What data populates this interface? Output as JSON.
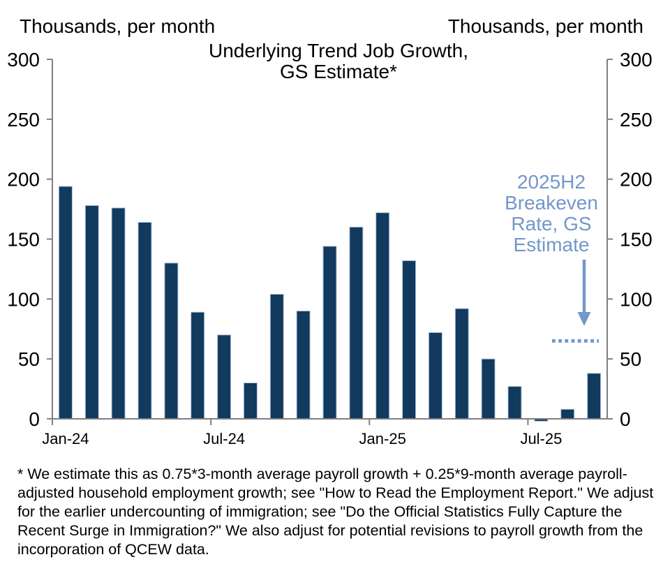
{
  "header": {
    "left_axis_units": "Thousands, per month",
    "right_axis_units": "Thousands, per month"
  },
  "title": "Underlying Trend Job Growth,\nGS Estimate*",
  "chart_data": {
    "type": "bar",
    "categories": [
      "Jan-24",
      "Feb-24",
      "Mar-24",
      "Apr-24",
      "May-24",
      "Jun-24",
      "Jul-24",
      "Aug-24",
      "Sep-24",
      "Oct-24",
      "Nov-24",
      "Dec-24",
      "Jan-25",
      "Feb-25",
      "Mar-25",
      "Apr-25",
      "May-25",
      "Jun-25",
      "Jul-25",
      "Aug-25",
      "Sep-25"
    ],
    "values": [
      194,
      178,
      176,
      164,
      130,
      89,
      70,
      30,
      104,
      90,
      144,
      160,
      172,
      132,
      72,
      92,
      50,
      27,
      -2,
      8,
      38
    ],
    "ylim": [
      0,
      300
    ],
    "yticks": [
      0,
      50,
      100,
      150,
      200,
      250,
      300
    ],
    "xticks": [
      {
        "index": 0,
        "label": "Jan-24"
      },
      {
        "index": 6,
        "label": "Jul-24"
      },
      {
        "index": 12,
        "label": "Jan-25"
      },
      {
        "index": 18,
        "label": "Jul-25"
      }
    ],
    "grid": false,
    "legend": "none",
    "bar_color": "#12395E",
    "bar_border_color": "#AFC3DC",
    "axis_color": "#7F7F7F",
    "breakeven": {
      "label": "2025H2\nBreakeven\nRate, GS\nEstimate",
      "value": 65,
      "color": "#7397C9"
    }
  },
  "footnote": "* We estimate this as 0.75*3-month average payroll growth + 0.25*9-month average payroll-adjusted household employment growth; see \"How to Read the Employment Report.\" We adjust for the earlier undercounting of immigration; see \"Do the Official Statistics Fully Capture the Recent Surge in Immigration?\" We also adjust for potential revisions to payroll growth from the incorporation of QCEW data."
}
